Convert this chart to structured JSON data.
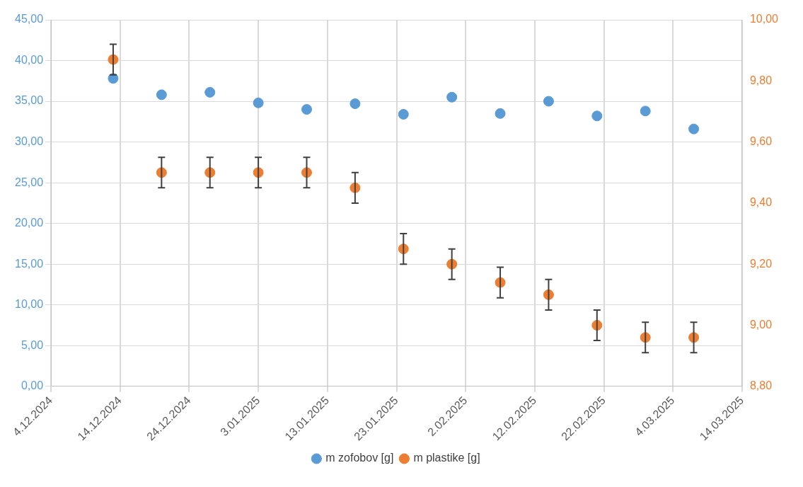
{
  "chart_data": {
    "type": "scatter",
    "x": [
      "2024-12-13",
      "2024-12-20",
      "2024-12-27",
      "2025-01-03",
      "2025-01-10",
      "2025-01-17",
      "2025-01-24",
      "2025-01-31",
      "2025-02-07",
      "2025-02-14",
      "2025-02-21",
      "2025-02-28",
      "2025-03-07"
    ],
    "series": [
      {
        "name": "m zofobov [g]",
        "color": "#5b9bd5",
        "values": [
          37.8,
          35.8,
          36.1,
          34.8,
          34.0,
          34.7,
          33.4,
          35.5,
          33.5,
          35.0,
          33.2,
          33.8,
          31.6
        ]
      },
      {
        "name": "m plastike [g]",
        "color": "#ed7d31",
        "axis": "y2",
        "values": [
          9.87,
          9.5,
          9.5,
          9.5,
          9.5,
          9.45,
          9.25,
          9.2,
          9.14,
          9.1,
          9.0,
          8.96,
          8.96
        ],
        "errors": [
          0.05,
          0.05,
          0.05,
          0.05,
          0.05,
          0.05,
          0.05,
          0.05,
          0.05,
          0.05,
          0.05,
          0.05,
          0.05
        ]
      }
    ],
    "xlim": [
      "2024-12-04",
      "2025-03-14"
    ],
    "xticks": [
      {
        "value": "2024-12-04",
        "label": "4.12.2024"
      },
      {
        "value": "2024-12-14",
        "label": "14.12.2024"
      },
      {
        "value": "2024-12-24",
        "label": "24.12.2024"
      },
      {
        "value": "2025-01-03",
        "label": "3.01.2025"
      },
      {
        "value": "2025-01-13",
        "label": "13.01.2025"
      },
      {
        "value": "2025-01-23",
        "label": "23.01.2025"
      },
      {
        "value": "2025-02-02",
        "label": "2.02.2025"
      },
      {
        "value": "2025-02-12",
        "label": "12.02.2025"
      },
      {
        "value": "2025-02-22",
        "label": "22.02.2025"
      },
      {
        "value": "2025-03-04",
        "label": "4.03.2025"
      },
      {
        "value": "2025-03-14",
        "label": "14.03.2025"
      }
    ],
    "ylim": [
      0,
      45
    ],
    "yticks": [
      {
        "value": 0,
        "label": "0,00"
      },
      {
        "value": 5,
        "label": "5,00"
      },
      {
        "value": 10,
        "label": "10,00"
      },
      {
        "value": 15,
        "label": "15,00"
      },
      {
        "value": 20,
        "label": "20,00"
      },
      {
        "value": 25,
        "label": "25,00"
      },
      {
        "value": 30,
        "label": "30,00"
      },
      {
        "value": 35,
        "label": "35,00"
      },
      {
        "value": 40,
        "label": "40,00"
      },
      {
        "value": 45,
        "label": "45,00"
      }
    ],
    "y2lim": [
      8.8,
      10
    ],
    "y2ticks": [
      {
        "value": 8.8,
        "label": "8,80"
      },
      {
        "value": 9,
        "label": "9,00"
      },
      {
        "value": 9.2,
        "label": "9,20"
      },
      {
        "value": 9.4,
        "label": "9,40"
      },
      {
        "value": 9.6,
        "label": "9,60"
      },
      {
        "value": 9.8,
        "label": "9,80"
      },
      {
        "value": 10,
        "label": "10,00"
      }
    ],
    "grid": true,
    "legend": "bottom",
    "marker": "circle"
  }
}
